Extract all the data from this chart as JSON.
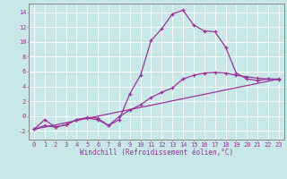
{
  "xlabel": "Windchill (Refroidissement éolien,°C)",
  "bg_color": "#c8e8e8",
  "line_color": "#993399",
  "xlim": [
    -0.5,
    23.5
  ],
  "ylim": [
    -3.2,
    15.2
  ],
  "yticks": [
    -2,
    0,
    2,
    4,
    6,
    8,
    10,
    12,
    14
  ],
  "xticks": [
    0,
    1,
    2,
    3,
    4,
    5,
    6,
    7,
    8,
    9,
    10,
    11,
    12,
    13,
    14,
    15,
    16,
    17,
    18,
    19,
    20,
    21,
    22,
    23
  ],
  "line1_x": [
    0,
    1,
    2,
    3,
    4,
    5,
    6,
    7,
    8,
    9,
    10,
    11,
    12,
    13,
    14,
    15,
    16,
    17,
    18,
    19,
    20,
    21,
    22,
    23
  ],
  "line1_y": [
    -1.8,
    -0.5,
    -1.5,
    -1.2,
    -0.5,
    -0.3,
    -0.5,
    -1.3,
    -0.5,
    3.0,
    5.5,
    10.2,
    11.8,
    13.8,
    14.3,
    12.3,
    11.5,
    11.4,
    9.3,
    5.8,
    5.0,
    4.8,
    5.0,
    4.9
  ],
  "line2_x": [
    0,
    1,
    2,
    3,
    4,
    5,
    6,
    7,
    8,
    9,
    10,
    11,
    12,
    13,
    14,
    15,
    16,
    17,
    18,
    19,
    20,
    21,
    22,
    23
  ],
  "line2_y": [
    -1.8,
    -1.3,
    -1.5,
    -1.2,
    -0.5,
    -0.2,
    -0.3,
    -1.3,
    -0.1,
    0.8,
    1.5,
    2.5,
    3.2,
    3.8,
    5.0,
    5.5,
    5.8,
    5.9,
    5.8,
    5.5,
    5.3,
    5.1,
    5.0,
    5.0
  ],
  "line3_x": [
    0,
    23
  ],
  "line3_y": [
    -1.8,
    5.0
  ],
  "grid_color": "#aacece",
  "spine_color": "#888888",
  "font_size_tick": 5.0,
  "font_size_xlabel": 5.5
}
